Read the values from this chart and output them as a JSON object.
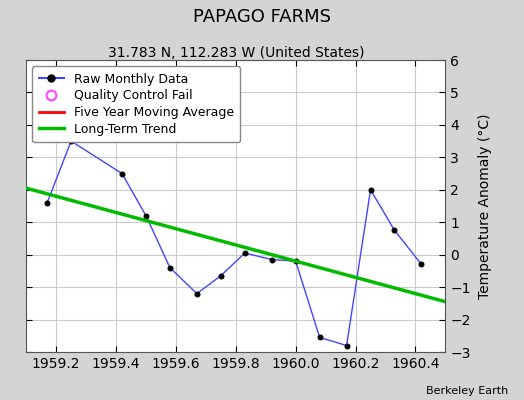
{
  "title": "PAPAGO FARMS",
  "subtitle": "31.783 N, 112.283 W (United States)",
  "attribution": "Berkeley Earth",
  "ylabel": "Temperature Anomaly (°C)",
  "xlim": [
    1959.1,
    1960.5
  ],
  "ylim": [
    -3,
    6
  ],
  "yticks": [
    -3,
    -2,
    -1,
    0,
    1,
    2,
    3,
    4,
    5,
    6
  ],
  "xticks": [
    1959.2,
    1959.4,
    1959.6,
    1959.8,
    1960.0,
    1960.2,
    1960.4
  ],
  "raw_x": [
    1959.17,
    1959.25,
    1959.42,
    1959.5,
    1959.58,
    1959.67,
    1959.75,
    1959.83,
    1959.92,
    1960.0,
    1960.08,
    1960.17,
    1960.25,
    1960.33,
    1960.42
  ],
  "raw_y": [
    1.6,
    3.5,
    2.5,
    1.2,
    -0.4,
    -1.2,
    -0.65,
    0.05,
    -0.15,
    -0.2,
    -2.55,
    -2.8,
    2.0,
    0.75,
    -0.3
  ],
  "trend_x": [
    1959.1,
    1960.5
  ],
  "trend_y": [
    2.05,
    -1.45
  ],
  "fig_bg_color": "#d4d4d4",
  "plot_bg_color": "#ffffff",
  "grid_color": "#cccccc",
  "raw_line_color": "#4444ff",
  "raw_marker_color": "#000000",
  "trend_color": "#00bb00",
  "moving_avg_color": "#ff0000",
  "qc_fail_color": "#ff44ff",
  "title_fontsize": 13,
  "subtitle_fontsize": 10,
  "legend_fontsize": 9,
  "tick_fontsize": 10,
  "ylabel_fontsize": 10
}
